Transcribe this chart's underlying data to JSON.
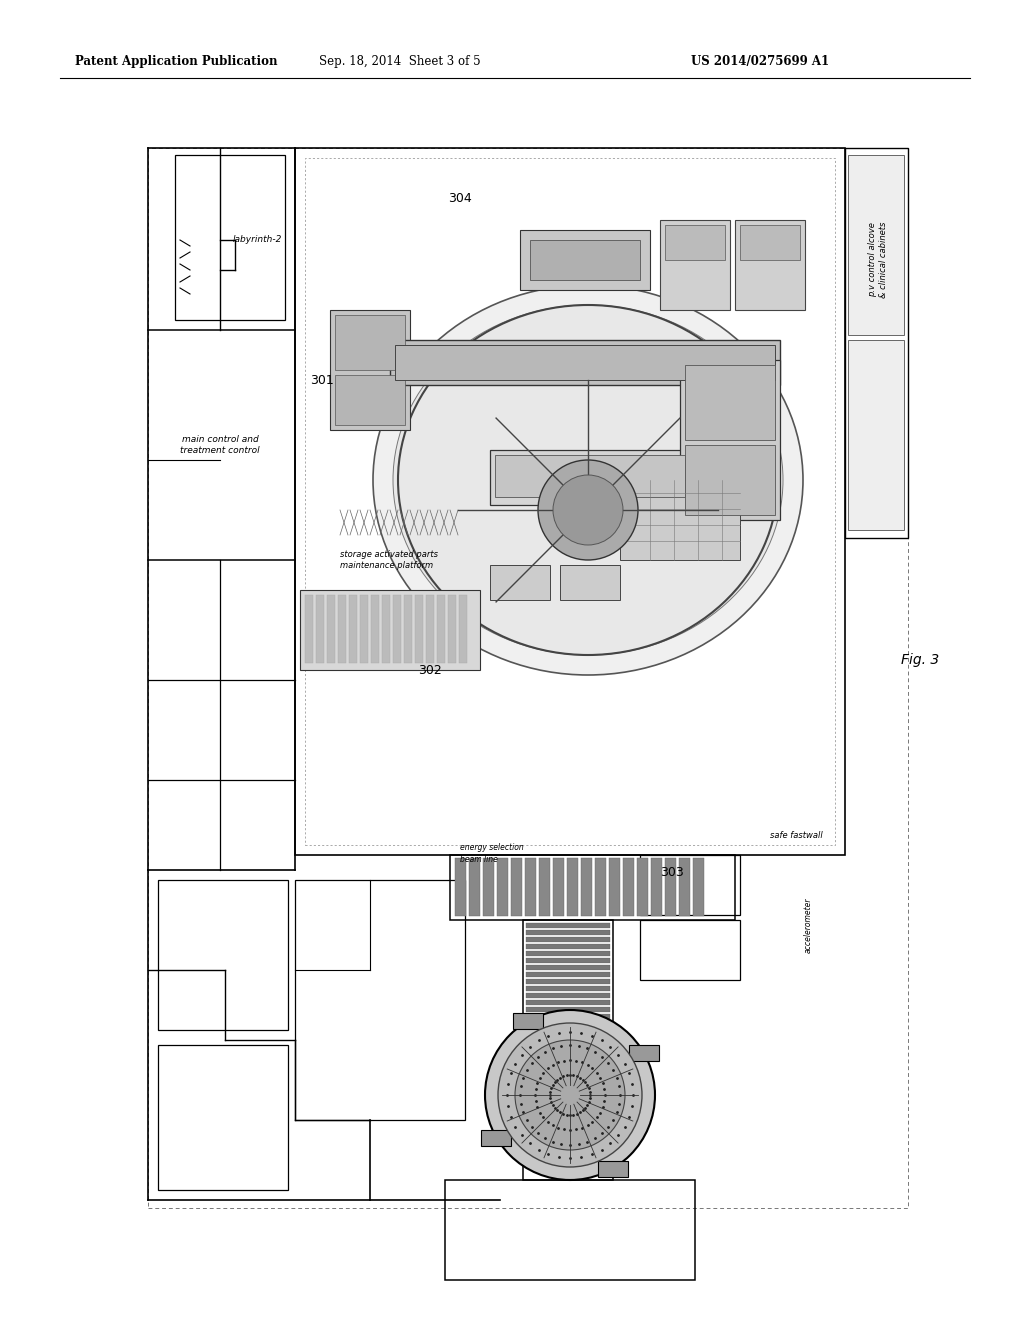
{
  "page_title_left": "Patent Application Publication",
  "page_title_mid": "Sep. 18, 2014  Sheet 3 of 5",
  "page_title_right": "US 2014/0275699 A1",
  "fig_label": "Fig. 3",
  "background_color": "#ffffff",
  "label_301": "301",
  "label_302": "302",
  "label_303": "303",
  "label_304": "304",
  "text_labyrinth": "labyrinth-2",
  "text_main_control": "main control and\ntreatment control",
  "text_storage": "storage activated parts\nmaintenance platform",
  "text_pv_control": "p.v control alcove\n& clinical cabinets",
  "text_accelerometer": "accelerometer",
  "text_safe_fastwall": "safe fastwall"
}
